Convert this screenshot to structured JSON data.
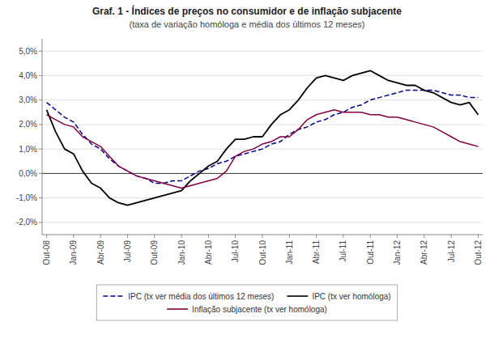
{
  "chart_data": {
    "type": "line",
    "title": "Graf. 1 - Índices de preços no consumidor e de inflação subjacente",
    "subtitle": "(taxa de variação homóloga e média dos últimos 12 meses)",
    "categories": [
      "Out-08",
      null,
      null,
      "Jan-09",
      null,
      null,
      "Abr-09",
      null,
      null,
      "Jul-09",
      null,
      null,
      "Out-09",
      null,
      null,
      "Jan-10",
      null,
      null,
      "Abr-10",
      null,
      null,
      "Jul-10",
      null,
      null,
      "Out-10",
      null,
      null,
      "Jan-11",
      null,
      null,
      "Abr-11",
      null,
      null,
      "Jul-11",
      null,
      null,
      "Out-11",
      null,
      null,
      "Jan-12",
      null,
      null,
      "Abr-12",
      null,
      null,
      "Jul-12",
      null,
      null,
      "Out-12"
    ],
    "series": [
      {
        "name": "IPC (tx ver média dos últimos 12 meses)",
        "color": "#00008B",
        "line_style": "dashed",
        "values": [
          0.029,
          0.026,
          0.023,
          0.021,
          0.016,
          0.012,
          0.01,
          0.006,
          0.003,
          0.001,
          -0.001,
          -0.002,
          -0.004,
          -0.004,
          -0.003,
          -0.003,
          -0.001,
          0.001,
          0.002,
          0.004,
          0.005,
          0.007,
          0.008,
          0.009,
          0.01,
          0.012,
          0.013,
          0.016,
          0.018,
          0.019,
          0.021,
          0.022,
          0.024,
          0.025,
          0.027,
          0.028,
          0.03,
          0.031,
          0.032,
          0.033,
          0.034,
          0.034,
          0.034,
          0.034,
          0.033,
          0.032,
          0.032,
          0.031,
          0.031
        ]
      },
      {
        "name": "IPC (tx ver homóloga)",
        "color": "#000000",
        "line_style": "solid",
        "values": [
          0.026,
          0.017,
          0.01,
          0.008,
          0.001,
          -0.004,
          -0.006,
          -0.01,
          -0.012,
          -0.013,
          -0.012,
          -0.011,
          -0.01,
          -0.009,
          -0.008,
          -0.007,
          -0.003,
          0.0,
          0.003,
          0.005,
          0.01,
          0.014,
          0.014,
          0.015,
          0.015,
          0.02,
          0.024,
          0.026,
          0.03,
          0.035,
          0.039,
          0.04,
          0.039,
          0.038,
          0.04,
          0.041,
          0.042,
          0.04,
          0.038,
          0.037,
          0.036,
          0.036,
          0.034,
          0.033,
          0.031,
          0.029,
          0.028,
          0.029,
          0.024
        ]
      },
      {
        "name": "Inflação subjacente (tx ver homóloga)",
        "color": "#800040",
        "line_style": "solid",
        "values": [
          0.024,
          0.022,
          0.02,
          0.019,
          0.015,
          0.013,
          0.011,
          0.007,
          0.003,
          0.001,
          -0.001,
          -0.002,
          -0.003,
          -0.004,
          -0.005,
          -0.006,
          -0.005,
          -0.004,
          -0.003,
          -0.002,
          0.001,
          0.007,
          0.009,
          0.01,
          0.012,
          0.013,
          0.015,
          0.015,
          0.018,
          0.022,
          0.024,
          0.025,
          0.026,
          0.025,
          0.025,
          0.025,
          0.024,
          0.024,
          0.023,
          0.023,
          0.022,
          0.021,
          0.02,
          0.019,
          0.017,
          0.015,
          0.013,
          0.012,
          0.011
        ]
      }
    ],
    "ylim": [
      -0.025,
      0.055
    ],
    "yticks": [
      {
        "value": -0.02,
        "label": "-2,0%"
      },
      {
        "value": -0.01,
        "label": "-1,0%"
      },
      {
        "value": 0.0,
        "label": "0,0%"
      },
      {
        "value": 0.01,
        "label": "1,0%"
      },
      {
        "value": 0.02,
        "label": "2,0%"
      },
      {
        "value": 0.03,
        "label": "3,0%"
      },
      {
        "value": 0.04,
        "label": "4,0%"
      },
      {
        "value": 0.05,
        "label": "5,0%"
      }
    ],
    "grid": true,
    "legend": "bottom"
  }
}
